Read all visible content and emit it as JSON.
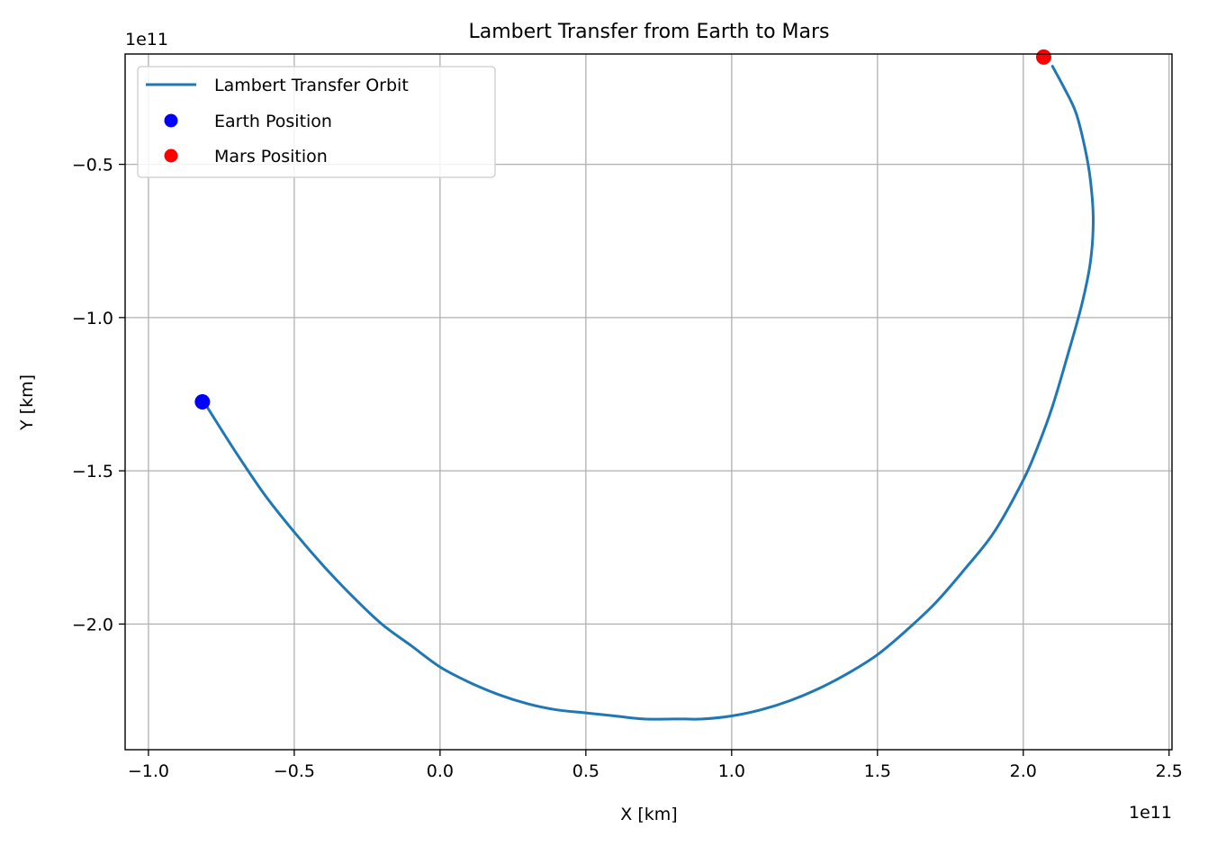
{
  "chart_data": {
    "type": "line",
    "title": "Lambert Transfer from Earth to Mars",
    "xlabel": "X [km]",
    "ylabel": "Y [km]",
    "x_offset_label": "1e11",
    "y_offset_label": "1e11",
    "xlim": [
      -1.08,
      2.51
    ],
    "ylim": [
      -2.41,
      -0.14
    ],
    "x_ticks": [
      -1.0,
      -0.5,
      0.0,
      0.5,
      1.0,
      1.5,
      2.0,
      2.5
    ],
    "x_tick_labels": [
      "−1.0",
      "−0.5",
      "0.0",
      "0.5",
      "1.0",
      "1.5",
      "2.0",
      "2.5"
    ],
    "y_ticks": [
      -0.5,
      -1.0,
      -1.5,
      -2.0
    ],
    "y_tick_labels": [
      "−0.5",
      "−1.0",
      "−1.5",
      "−2.0"
    ],
    "grid": true,
    "legend_position": "upper-left",
    "series": [
      {
        "name": "Lambert Transfer Orbit",
        "kind": "line",
        "color": "#1f77b4",
        "x": [
          -0.8,
          -0.7,
          -0.6,
          -0.5,
          -0.4,
          -0.3,
          -0.2,
          -0.1,
          0.0,
          0.1,
          0.2,
          0.3,
          0.4,
          0.5,
          0.6,
          0.7,
          0.8,
          0.84,
          0.9,
          1.0,
          1.1,
          1.2,
          1.3,
          1.4,
          1.5,
          1.6,
          1.7,
          1.8,
          1.9,
          2.0,
          2.05,
          2.1,
          2.15,
          2.2,
          2.23,
          2.24,
          2.23,
          2.21,
          2.18,
          2.14,
          2.1
        ],
        "y": [
          -1.29,
          -1.44,
          -1.58,
          -1.7,
          -1.81,
          -1.91,
          -2.0,
          -2.07,
          -2.14,
          -2.19,
          -2.23,
          -2.26,
          -2.28,
          -2.29,
          -2.3,
          -2.31,
          -2.31,
          -2.31,
          -2.31,
          -2.3,
          -2.28,
          -2.25,
          -2.21,
          -2.16,
          -2.1,
          -2.02,
          -1.93,
          -1.82,
          -1.7,
          -1.53,
          -1.42,
          -1.29,
          -1.13,
          -0.96,
          -0.82,
          -0.68,
          -0.55,
          -0.44,
          -0.33,
          -0.25,
          -0.18
        ]
      },
      {
        "name": "Earth Position",
        "kind": "scatter",
        "color": "#0000ff",
        "x": [
          -0.815
        ],
        "y": [
          -1.275
        ]
      },
      {
        "name": "Mars Position",
        "kind": "scatter",
        "color": "#ff0000",
        "x": [
          2.07
        ],
        "y": [
          -0.15
        ]
      }
    ]
  }
}
